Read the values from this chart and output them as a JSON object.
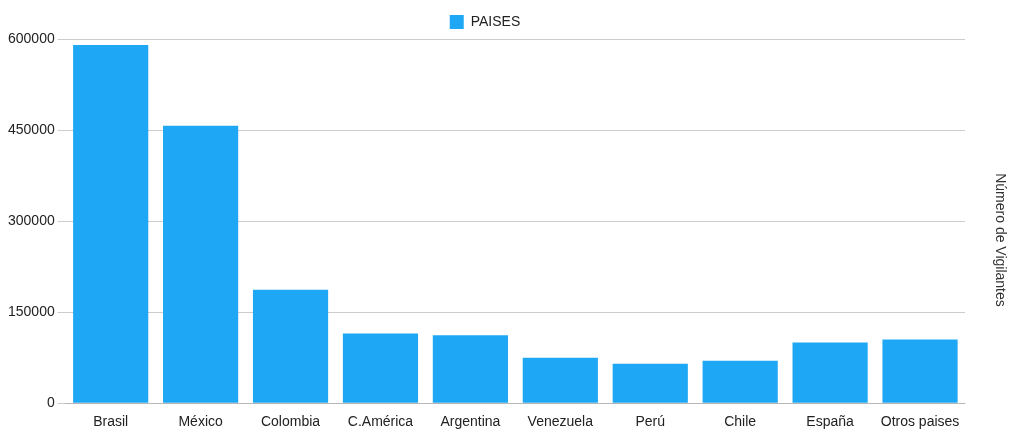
{
  "chart_data": {
    "type": "bar",
    "ylabel": "Número de Vigilantes",
    "legend": "top",
    "categories": [
      "Brasil",
      "México",
      "Colombia",
      "C.América",
      "Argentina",
      "Venezuela",
      "Perú",
      "Chile",
      "España",
      "Otros paises"
    ],
    "series": [
      {
        "name": "PAISES",
        "color": "#1ea7f5",
        "values": [
          590000,
          457000,
          187000,
          115000,
          112000,
          75000,
          65000,
          70000,
          100000,
          105000
        ]
      }
    ],
    "ylim": [
      0,
      600000
    ],
    "yticks": [
      0,
      150000,
      300000,
      450000,
      600000
    ],
    "grid": "y"
  }
}
